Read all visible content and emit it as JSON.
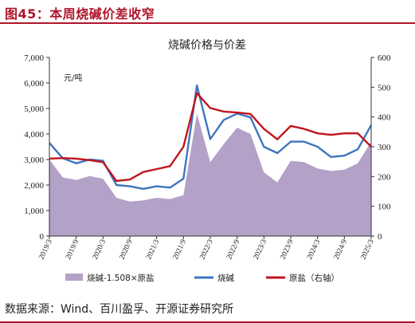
{
  "figure": {
    "title": "图45：本周烧碱价差收窄",
    "source": "数据来源：Wind、百川盈孚、开源证券研究所"
  },
  "colors": {
    "accent": "#b0162b",
    "spread_fill": "#b4a1c8",
    "caustic_line": "#3f74bf",
    "salt_line": "#c0141c"
  },
  "chart_data": {
    "type": "line",
    "title": "烧碱价格与价差",
    "unit_label": "元/吨",
    "x": [
      "2019-03",
      "2019-06",
      "2019-09",
      "2019-12",
      "2020-03",
      "2020-06",
      "2020-09",
      "2020-12",
      "2021-03",
      "2021-06",
      "2021-09",
      "2021-12",
      "2022-03",
      "2022-06",
      "2022-09",
      "2022-12",
      "2023-03",
      "2023-06",
      "2023-09",
      "2023-12",
      "2024-03",
      "2024-06",
      "2024-09",
      "2024-12",
      "2025-03"
    ],
    "x_tick_labels": [
      "2019/3",
      "2019/9",
      "2020/3",
      "2020/9",
      "2021/3",
      "2021/9",
      "2022/3",
      "2022/9",
      "2023/3",
      "2023/9",
      "2024/3",
      "2024/9",
      "2025/3"
    ],
    "y_left": {
      "min": 0,
      "max": 7000,
      "ticks": [
        "0",
        "1,000",
        "2,000",
        "3,000",
        "4,000",
        "5,000",
        "6,000",
        "7,000"
      ]
    },
    "y_right": {
      "min": 0,
      "max": 600,
      "ticks": [
        "0",
        "100",
        "200",
        "300",
        "400",
        "500",
        "600"
      ]
    },
    "series": [
      {
        "name": "烧碱-1.508×原盐",
        "kind": "area",
        "axis": "left",
        "values": [
          3000,
          2300,
          2200,
          2350,
          2250,
          1500,
          1350,
          1400,
          1500,
          1450,
          1600,
          4800,
          2900,
          3600,
          4250,
          4000,
          2500,
          2100,
          2950,
          2900,
          2650,
          2550,
          2600,
          2850,
          3700
        ]
      },
      {
        "name": "烧碱",
        "kind": "line",
        "axis": "left",
        "values": [
          3650,
          3050,
          2850,
          3000,
          2950,
          2000,
          1950,
          1850,
          1950,
          1900,
          2250,
          5900,
          3800,
          4550,
          4800,
          4650,
          3500,
          3250,
          3700,
          3700,
          3500,
          3100,
          3150,
          3400,
          4350
        ]
      },
      {
        "name": "原盐（右轴）",
        "kind": "line",
        "axis": "right",
        "values": [
          260,
          262,
          260,
          255,
          248,
          185,
          190,
          215,
          225,
          235,
          300,
          480,
          430,
          418,
          415,
          410,
          360,
          325,
          370,
          360,
          345,
          340,
          345,
          345,
          300
        ]
      }
    ],
    "legend": {
      "placement": "bottom",
      "labels": [
        "烧碱-1.508×原盐",
        "烧碱",
        "原盐（右轴）"
      ]
    },
    "grid": false
  }
}
